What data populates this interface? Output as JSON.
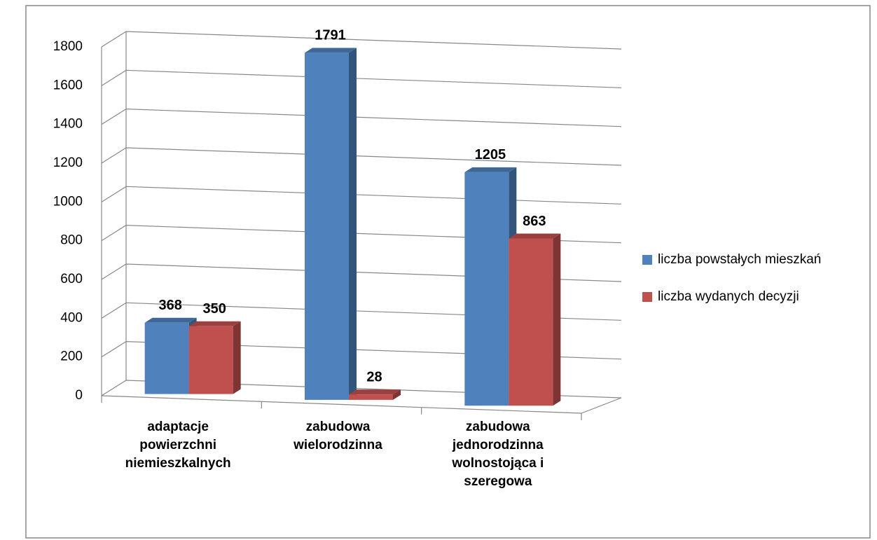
{
  "chart_data": {
    "type": "bar3d",
    "categories": [
      "adaptacje powierzchni niemieszkalnych",
      "zabudowa wielorodzinna",
      "zabudowa jednorodzinna wolnostojąca i szeregowa"
    ],
    "series": [
      {
        "name": "liczba powstałych mieszkań",
        "color": "#4f81bd",
        "values": [
          368,
          1791,
          1205
        ]
      },
      {
        "name": "liczba wydanych decyzji",
        "color": "#c0504d",
        "values": [
          350,
          28,
          863
        ]
      }
    ],
    "ylim": [
      0,
      1800
    ],
    "yticks": [
      0,
      200,
      400,
      600,
      800,
      1000,
      1200,
      1400,
      1600,
      1800
    ],
    "grid": true,
    "legend": "right"
  }
}
